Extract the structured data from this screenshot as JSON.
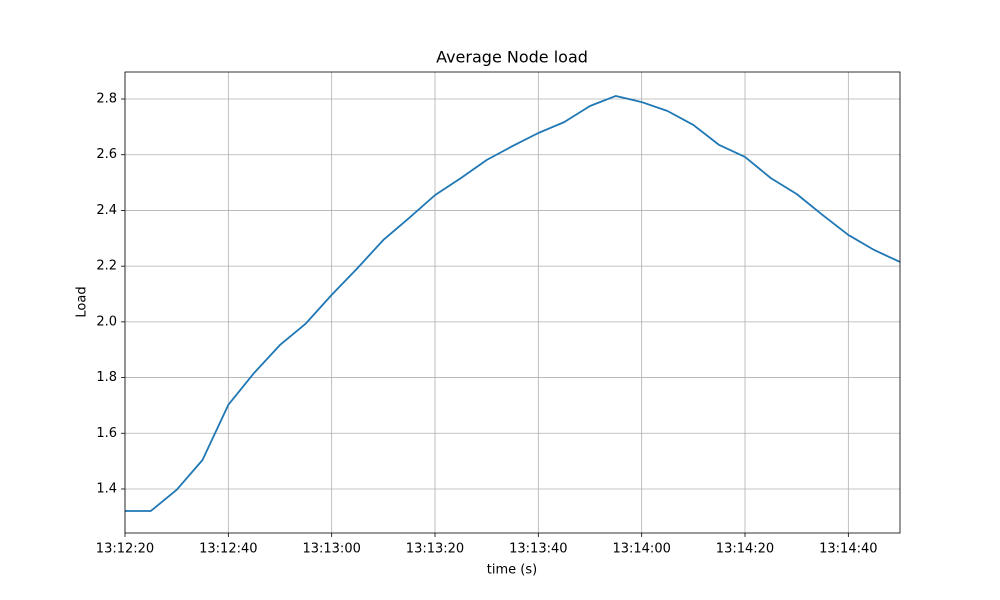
{
  "chart_data": {
    "type": "line",
    "title": "Average Node load",
    "x_label": "time (s)",
    "y_label": "Load",
    "x": [
      "13:12:20",
      "13:12:25",
      "13:12:30",
      "13:12:35",
      "13:12:40",
      "13:12:45",
      "13:12:50",
      "13:12:55",
      "13:13:00",
      "13:13:05",
      "13:13:10",
      "13:13:15",
      "13:13:20",
      "13:13:25",
      "13:13:30",
      "13:13:35",
      "13:13:40",
      "13:13:45",
      "13:13:50",
      "13:13:55",
      "13:14:00",
      "13:14:05",
      "13:14:10",
      "13:14:15",
      "13:14:20",
      "13:14:25",
      "13:14:30",
      "13:14:35",
      "13:14:40",
      "13:14:45",
      "13:14:50"
    ],
    "series": [
      {
        "name": "Load",
        "color": "#1f77b4",
        "values": [
          1.321,
          1.321,
          1.397,
          1.504,
          1.702,
          1.817,
          1.917,
          1.994,
          2.097,
          2.193,
          2.294,
          2.373,
          2.455,
          2.516,
          2.581,
          2.631,
          2.678,
          2.717,
          2.775,
          2.811,
          2.789,
          2.757,
          2.707,
          2.635,
          2.592,
          2.516,
          2.459,
          2.384,
          2.312,
          2.258,
          2.215
        ]
      }
    ],
    "xlim": [
      "13:12:20",
      "13:14:50"
    ],
    "xticks": [
      "13:12:20",
      "13:12:40",
      "13:13:00",
      "13:13:20",
      "13:13:40",
      "13:14:00",
      "13:14:20",
      "13:14:40"
    ],
    "ylim": [
      1.242,
      2.897
    ],
    "yticks": [
      1.4,
      1.6,
      1.8,
      {
        "value": 2,
        "label": "2.0"
      },
      2.2,
      2.4,
      2.6,
      2.8
    ],
    "grid": true
  }
}
